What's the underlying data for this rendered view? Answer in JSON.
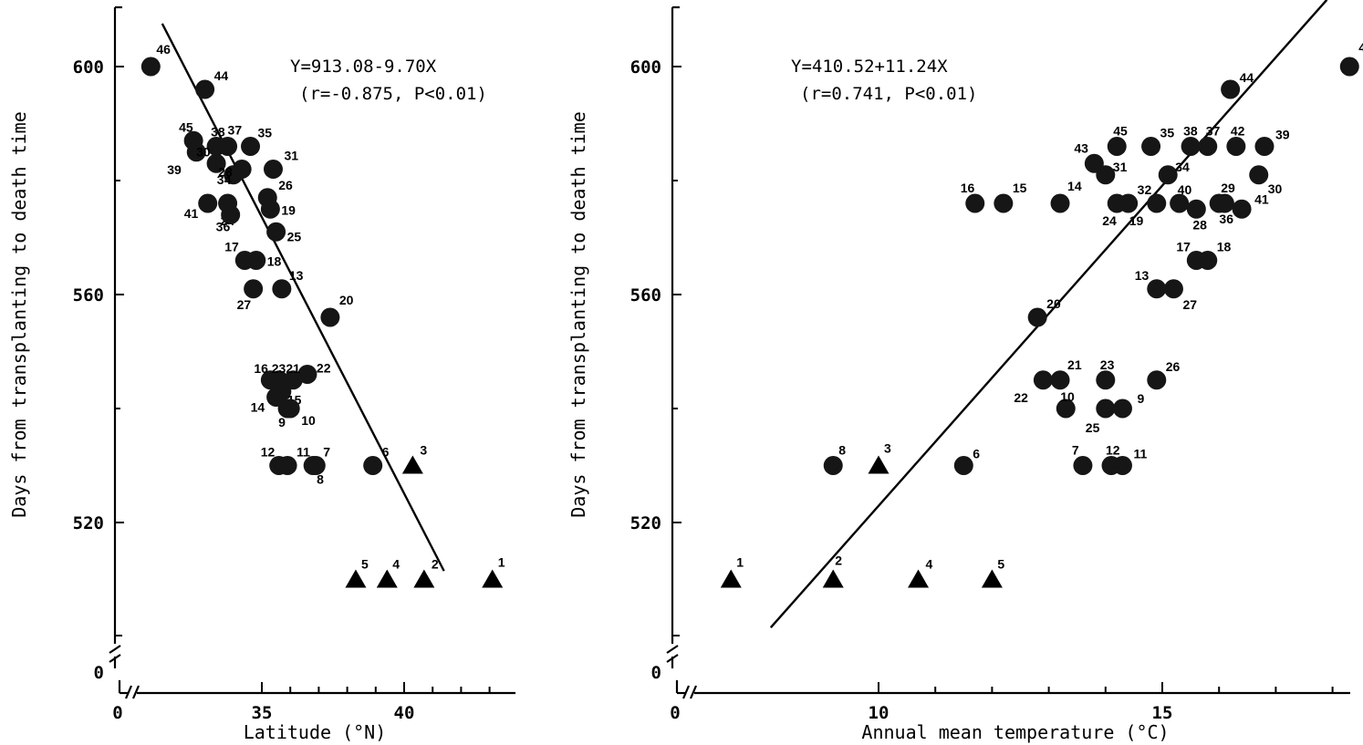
{
  "chart_data": [
    {
      "type": "scatter",
      "xlabel": "Latitude (°N)",
      "ylabel": "Days from transplanting to death time",
      "xlim": [
        30,
        43
      ],
      "ylim": [
        500,
        605
      ],
      "x_ticks": [
        0,
        35,
        40
      ],
      "y_ticks": [
        0,
        520,
        560,
        600
      ],
      "axis_break": true,
      "grid": false,
      "annotations": [
        "Y=913.08-9.70X",
        "(r=-0.875, P<0.01)"
      ],
      "regression": {
        "intercept": 913.08,
        "slope": -9.7,
        "x_range": [
          31.5,
          41.4
        ]
      },
      "series": [
        {
          "marker": "circle",
          "points": [
            {
              "label": "46",
              "x": 31.1,
              "y": 600
            },
            {
              "label": "44",
              "x": 33.0,
              "y": 596
            },
            {
              "label": "45",
              "x": 32.6,
              "y": 587
            },
            {
              "label": "38",
              "x": 33.4,
              "y": 586
            },
            {
              "label": "37",
              "x": 33.8,
              "y": 586
            },
            {
              "label": "35",
              "x": 34.6,
              "y": 586
            },
            {
              "label": "39",
              "x": 32.7,
              "y": 585
            },
            {
              "label": "30",
              "x": 33.4,
              "y": 583
            },
            {
              "label": "31",
              "x": 35.4,
              "y": 582
            },
            {
              "label": "34",
              "x": 34.0,
              "y": 581
            },
            {
              "label": "28",
              "x": 34.3,
              "y": 582
            },
            {
              "label": "26",
              "x": 35.2,
              "y": 577
            },
            {
              "label": "41",
              "x": 33.1,
              "y": 576
            },
            {
              "label": "24",
              "x": 33.8,
              "y": 576
            },
            {
              "label": "19",
              "x": 35.3,
              "y": 575
            },
            {
              "label": "36",
              "x": 33.9,
              "y": 574
            },
            {
              "label": "25",
              "x": 35.5,
              "y": 571
            },
            {
              "label": "17",
              "x": 34.4,
              "y": 566
            },
            {
              "label": "18",
              "x": 34.8,
              "y": 566
            },
            {
              "label": "27",
              "x": 34.7,
              "y": 561
            },
            {
              "label": "13",
              "x": 35.7,
              "y": 561
            },
            {
              "label": "20",
              "x": 37.4,
              "y": 556
            },
            {
              "label": "22",
              "x": 36.6,
              "y": 546
            },
            {
              "label": "21",
              "x": 36.1,
              "y": 545
            },
            {
              "label": "16",
              "x": 35.3,
              "y": 545
            },
            {
              "label": "23",
              "x": 35.6,
              "y": 545
            },
            {
              "label": "15",
              "x": 35.7,
              "y": 543
            },
            {
              "label": "14",
              "x": 35.5,
              "y": 542
            },
            {
              "label": "10",
              "x": 36.0,
              "y": 540
            },
            {
              "label": "9",
              "x": 35.9,
              "y": 540
            },
            {
              "label": "12",
              "x": 35.6,
              "y": 530
            },
            {
              "label": "11",
              "x": 35.9,
              "y": 530
            },
            {
              "label": "7",
              "x": 36.9,
              "y": 530
            },
            {
              "label": "8",
              "x": 36.8,
              "y": 530
            },
            {
              "label": "6",
              "x": 38.9,
              "y": 530
            }
          ]
        },
        {
          "marker": "triangle",
          "points": [
            {
              "label": "3",
              "x": 40.3,
              "y": 530
            },
            {
              "label": "5",
              "x": 38.3,
              "y": 510
            },
            {
              "label": "4",
              "x": 39.4,
              "y": 510
            },
            {
              "label": "2",
              "x": 40.7,
              "y": 510
            },
            {
              "label": "1",
              "x": 43.1,
              "y": 510
            }
          ]
        }
      ]
    },
    {
      "type": "scatter",
      "xlabel": "Annual mean temperature (°C)",
      "ylabel": "Days from transplanting to death time",
      "xlim": [
        6.5,
        18.5
      ],
      "ylim": [
        500,
        605
      ],
      "x_ticks": [
        0,
        10,
        15
      ],
      "y_ticks": [
        0,
        520,
        560,
        600
      ],
      "axis_break": true,
      "grid": false,
      "annotations": [
        "Y=410.52+11.24X",
        "(r=0.741, P<0.01)"
      ],
      "regression": {
        "intercept": 410.52,
        "slope": 11.24,
        "x_range": [
          8.1,
          17.9
        ]
      },
      "series": [
        {
          "marker": "circle",
          "points": [
            {
              "label": "46",
              "x": 18.3,
              "y": 600
            },
            {
              "label": "44",
              "x": 16.2,
              "y": 596
            },
            {
              "label": "43",
              "x": 13.8,
              "y": 583
            },
            {
              "label": "45",
              "x": 14.2,
              "y": 586
            },
            {
              "label": "31",
              "x": 14.0,
              "y": 581
            },
            {
              "label": "35",
              "x": 14.8,
              "y": 586
            },
            {
              "label": "38",
              "x": 15.5,
              "y": 586
            },
            {
              "label": "37",
              "x": 15.8,
              "y": 586
            },
            {
              "label": "42",
              "x": 16.3,
              "y": 586
            },
            {
              "label": "39",
              "x": 16.8,
              "y": 586
            },
            {
              "label": "34",
              "x": 15.1,
              "y": 581
            },
            {
              "label": "30",
              "x": 16.7,
              "y": 581
            },
            {
              "label": "32",
              "x": 14.4,
              "y": 576
            },
            {
              "label": "24",
              "x": 14.2,
              "y": 576
            },
            {
              "label": "19",
              "x": 14.9,
              "y": 576
            },
            {
              "label": "40",
              "x": 15.3,
              "y": 576
            },
            {
              "label": "29",
              "x": 16.0,
              "y": 576
            },
            {
              "label": "28",
              "x": 15.6,
              "y": 575
            },
            {
              "label": "36",
              "x": 16.1,
              "y": 576
            },
            {
              "label": "41",
              "x": 16.4,
              "y": 575
            },
            {
              "label": "16",
              "x": 11.7,
              "y": 576
            },
            {
              "label": "15",
              "x": 12.2,
              "y": 576
            },
            {
              "label": "14",
              "x": 13.2,
              "y": 576
            },
            {
              "label": "17",
              "x": 15.6,
              "y": 566
            },
            {
              "label": "18",
              "x": 15.8,
              "y": 566
            },
            {
              "label": "13",
              "x": 14.9,
              "y": 561
            },
            {
              "label": "27",
              "x": 15.2,
              "y": 561
            },
            {
              "label": "20",
              "x": 12.8,
              "y": 556
            },
            {
              "label": "21",
              "x": 13.2,
              "y": 545
            },
            {
              "label": "22",
              "x": 12.9,
              "y": 545
            },
            {
              "label": "23",
              "x": 14.0,
              "y": 545
            },
            {
              "label": "26",
              "x": 14.9,
              "y": 545
            },
            {
              "label": "10",
              "x": 13.3,
              "y": 540
            },
            {
              "label": "25",
              "x": 14.0,
              "y": 540
            },
            {
              "label": "9",
              "x": 14.3,
              "y": 540
            },
            {
              "label": "7",
              "x": 13.6,
              "y": 530
            },
            {
              "label": "12",
              "x": 14.1,
              "y": 530
            },
            {
              "label": "11",
              "x": 14.3,
              "y": 530
            },
            {
              "label": "8",
              "x": 9.2,
              "y": 530
            },
            {
              "label": "6",
              "x": 11.5,
              "y": 530
            }
          ]
        },
        {
          "marker": "triangle",
          "points": [
            {
              "label": "3",
              "x": 10.0,
              "y": 530
            },
            {
              "label": "1",
              "x": 7.4,
              "y": 510
            },
            {
              "label": "2",
              "x": 9.2,
              "y": 510
            },
            {
              "label": "4",
              "x": 10.7,
              "y": 510
            },
            {
              "label": "5",
              "x": 12.0,
              "y": 510
            }
          ]
        }
      ]
    }
  ]
}
